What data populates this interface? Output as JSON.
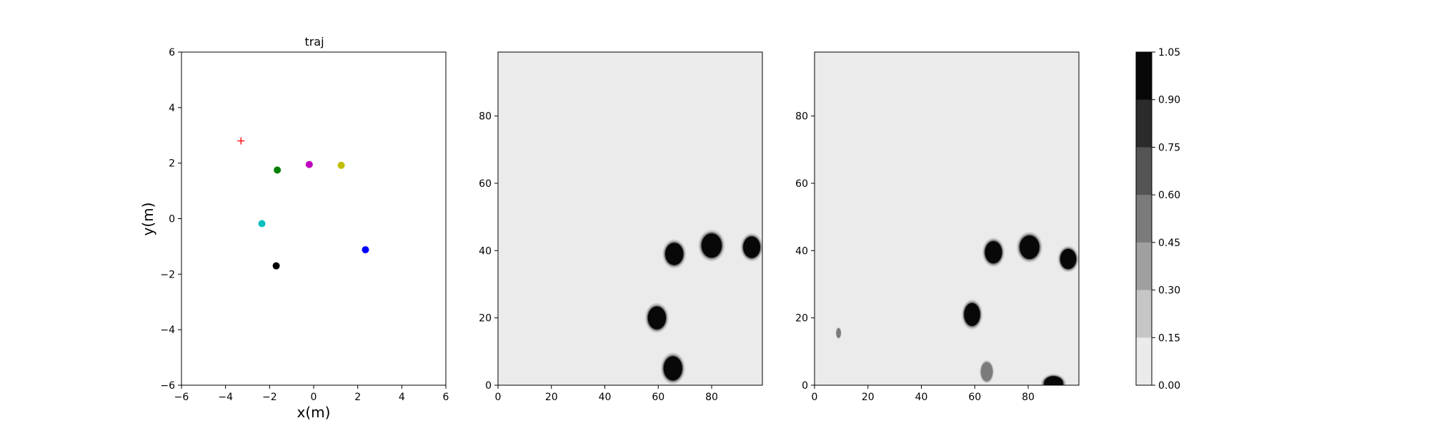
{
  "chart_data": [
    {
      "type": "scatter",
      "title": "traj",
      "xlabel": "x(m)",
      "ylabel": "y(m)",
      "xlim": [
        -6,
        6
      ],
      "ylim": [
        -6,
        6
      ],
      "xticks": [
        "−6",
        "−4",
        "−2",
        "0",
        "2",
        "4",
        "6"
      ],
      "yticks": [
        "6",
        "4",
        "2",
        "0",
        "−2",
        "−4",
        "−6"
      ],
      "grid": false,
      "points": [
        {
          "x": -3.3,
          "y": 2.8,
          "color": "#ff0000",
          "marker": "plus"
        },
        {
          "x": -1.65,
          "y": 1.75,
          "color": "#008000",
          "marker": "circle"
        },
        {
          "x": -0.2,
          "y": 1.95,
          "color": "#bf00bf",
          "marker": "circle"
        },
        {
          "x": 1.25,
          "y": 1.92,
          "color": "#bfbf00",
          "marker": "circle"
        },
        {
          "x": -2.35,
          "y": -0.18,
          "color": "#00bfbf",
          "marker": "circle"
        },
        {
          "x": 2.35,
          "y": -1.12,
          "color": "#0000ff",
          "marker": "circle"
        },
        {
          "x": -1.7,
          "y": -1.7,
          "color": "#000000",
          "marker": "circle"
        }
      ]
    },
    {
      "type": "heatmap",
      "title": "",
      "xlim": [
        0,
        99
      ],
      "ylim": [
        0,
        99
      ],
      "xticks": [
        "0",
        "20",
        "40",
        "60",
        "80"
      ],
      "yticks": [
        "80",
        "60",
        "40",
        "20",
        "0"
      ],
      "background_color": "#ebebeb",
      "blobs": [
        {
          "x": 66,
          "y": 39,
          "rx": 3.4,
          "ry": 3.3,
          "level": 1.0
        },
        {
          "x": 80,
          "y": 41.5,
          "rx": 3.8,
          "ry": 3.6,
          "level": 1.0
        },
        {
          "x": 95,
          "y": 41,
          "rx": 3.2,
          "ry": 3.2,
          "level": 1.0
        },
        {
          "x": 59.5,
          "y": 20,
          "rx": 3.4,
          "ry": 3.4,
          "level": 1.0
        },
        {
          "x": 65.5,
          "y": 5,
          "rx": 3.5,
          "ry": 3.6,
          "level": 1.0
        }
      ]
    },
    {
      "type": "heatmap",
      "title": "",
      "xlim": [
        0,
        99
      ],
      "ylim": [
        0,
        99
      ],
      "xticks": [
        "0",
        "20",
        "40",
        "60",
        "80"
      ],
      "yticks": [
        "80",
        "60",
        "40",
        "20",
        "0"
      ],
      "background_color": "#ebebeb",
      "blobs": [
        {
          "x": 67,
          "y": 39.5,
          "rx": 3.2,
          "ry": 3.3,
          "level": 1.0
        },
        {
          "x": 80.5,
          "y": 41,
          "rx": 3.7,
          "ry": 3.5,
          "level": 1.0
        },
        {
          "x": 95,
          "y": 37.5,
          "rx": 3.0,
          "ry": 3.0,
          "level": 0.95
        },
        {
          "x": 59,
          "y": 21,
          "rx": 3.0,
          "ry": 3.4,
          "level": 1.0
        },
        {
          "x": 89.5,
          "y": 0.5,
          "rx": 3.6,
          "ry": 2.2,
          "level": 0.9
        },
        {
          "x": 9,
          "y": 15.5,
          "rx": 0.8,
          "ry": 1.3,
          "level": 0.5
        },
        {
          "x": 64.5,
          "y": 4,
          "rx": 2.0,
          "ry": 2.6,
          "level": 0.45
        }
      ]
    }
  ],
  "colorbar": {
    "levels": [
      "1.05",
      "0.90",
      "0.75",
      "0.60",
      "0.45",
      "0.30",
      "0.15",
      "0.00"
    ],
    "colors": [
      "#080808",
      "#2b2b2b",
      "#545454",
      "#7b7b7b",
      "#a0a0a0",
      "#c6c6c6",
      "#ebebeb"
    ]
  }
}
